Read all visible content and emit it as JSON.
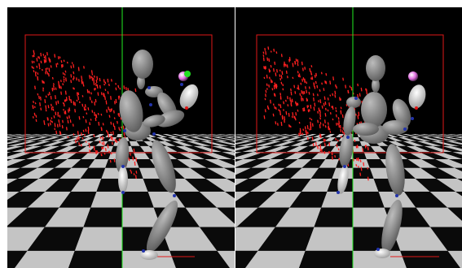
{
  "scene": {
    "background_color": "#ffffff",
    "viewport_background": "#000000",
    "floor_colors": [
      "#0a0a0a",
      "#c4c4c4"
    ],
    "bounding_box_color": "#e01818",
    "point_cloud_color": "#ff2020",
    "axis_line_color": "#22ee22",
    "figure_color": "#8a8a8a",
    "joint_marker_color": "#2233aa",
    "target_sphere_colors": [
      "#ffffff",
      "#e060e0",
      "#22dd22"
    ]
  },
  "viewports": [
    {
      "id": "left",
      "pose": "punch-extended",
      "target_visible_green": true
    },
    {
      "id": "right",
      "pose": "crouched-guard",
      "target_visible_green": false
    }
  ]
}
